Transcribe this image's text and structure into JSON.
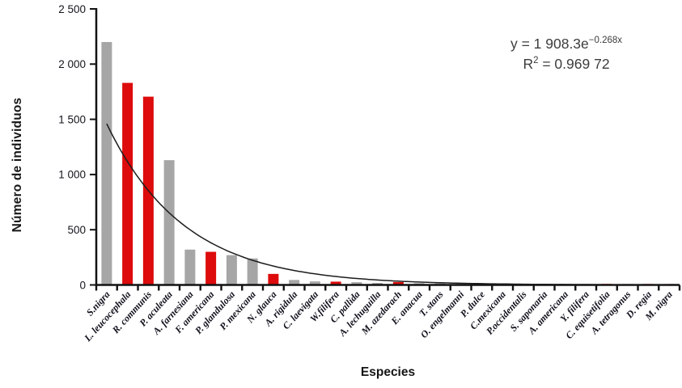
{
  "chart_data": {
    "type": "bar",
    "title": "",
    "xlabel": "Especies",
    "ylabel": "Número de individuos",
    "ylim": [
      0,
      2500
    ],
    "grid": false,
    "legend": "none",
    "yticks": [
      0,
      500,
      1000,
      1500,
      2000,
      2500
    ],
    "ytick_labels": [
      "0",
      "500",
      "1 000",
      "1 500",
      "2 000",
      "2 500"
    ],
    "categories": [
      "S.nigra",
      "L. leucocephala",
      "R. communis",
      "P. aculeata",
      "A. farnesiana",
      "F. americana",
      "P. glandulosa",
      "P. mexicana",
      "N. glauca",
      "A. rigidula",
      "C. laevigata",
      "W.filifera",
      "C. pallida",
      "A. lechuguilla",
      "M. azedarach",
      "E. anacua",
      "T. stans",
      "O. engelmanni",
      "P. dulce",
      "C.mexicana",
      "P.occidentalis",
      "S. saponaria",
      "A. americana",
      "Y. filifera",
      "C. equisetifolia",
      "A. tetragonus",
      "D. regia",
      "M. nigra"
    ],
    "values": [
      2200,
      1830,
      1705,
      1130,
      320,
      300,
      270,
      240,
      100,
      45,
      32,
      30,
      25,
      18,
      26,
      16,
      14,
      13,
      12,
      12,
      11,
      11,
      10,
      10,
      10,
      9,
      9,
      8
    ],
    "bar_color_keys": [
      "gray",
      "red",
      "red",
      "gray",
      "gray",
      "red",
      "gray",
      "gray",
      "red",
      "gray",
      "gray",
      "red",
      "gray",
      "gray",
      "red",
      "gray",
      "gray",
      "gray",
      "gray",
      "gray",
      "gray",
      "gray",
      "gray",
      "gray",
      "red",
      "gray",
      "red",
      "red"
    ],
    "palette": {
      "gray": "#a6a6a6",
      "red": "#dd0b0b",
      "axis": "#121212",
      "trendline": "#1c1c1c",
      "tick_label": "#14141c",
      "category_label": "#10101c",
      "equation_text": "#3c3c3c"
    },
    "trendline": {
      "model": "exponential",
      "a": 1908.3,
      "b": -0.268,
      "equation_base": "y = 1 908.3e",
      "equation_exponent": "−0.268x",
      "r2_base": "R",
      "r2_sup": "2",
      "r2_rest": " = 0.969 72"
    }
  }
}
